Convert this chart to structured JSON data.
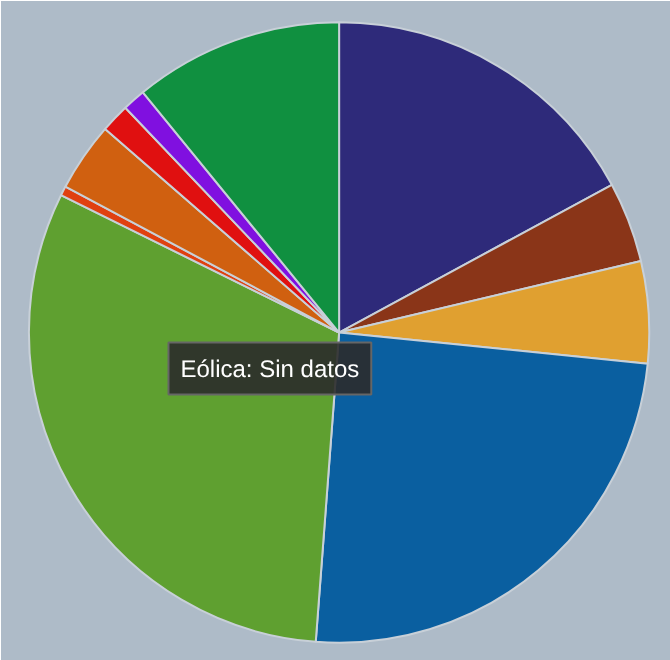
{
  "chart_data": {
    "type": "pie",
    "categories": [
      null,
      null,
      null,
      null,
      null,
      null,
      null,
      null,
      null,
      null
    ],
    "values": [
      17.1,
      4.2,
      5.3,
      24.6,
      31.1,
      0.5,
      3.6,
      1.5,
      1.2,
      10.9
    ],
    "colors": [
      "#2e2a7a",
      "#8a3518",
      "#e0a030",
      "#0a5fa0",
      "#5fa030",
      "#e04010",
      "#d06010",
      "#e01010",
      "#8010e0",
      "#109040"
    ],
    "annotations": [
      "Eólica: Sin datos"
    ]
  }
}
